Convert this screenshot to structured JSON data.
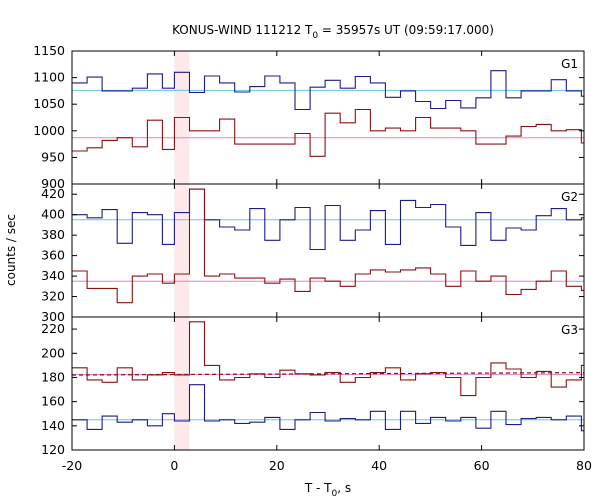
{
  "chart_data": {
    "type": "line",
    "title_main": "KONUS-WIND 111212 T",
    "title_sub": "0",
    "title_rest": " = 35957s UT (09:59:17.000)",
    "xlabel_main": "T - T",
    "xlabel_sub": "0",
    "xlabel_rest": ", s",
    "ylabel": "counts / sec",
    "xlim": [
      -20,
      80
    ],
    "x_ticks": [
      "-20",
      "0",
      "20",
      "40",
      "60",
      "80"
    ],
    "highlight_x": [
      0,
      2.944
    ],
    "bin_edges": [
      -20,
      -17.056,
      -14.112,
      -11.168,
      -8.224,
      -5.28,
      -2.336,
      0,
      2.944,
      5.888,
      8.832,
      11.776,
      14.72,
      17.664,
      20.608,
      23.552,
      26.496,
      29.44,
      32.384,
      35.328,
      38.272,
      41.216,
      44.16,
      47.104,
      50.048,
      52.992,
      55.936,
      58.88,
      61.824,
      64.768,
      67.712,
      70.656,
      73.6,
      76.544,
      79.488,
      80
    ],
    "colors": {
      "high": "#1c1c8c",
      "low": "#8c1010",
      "high_bg": "#5ec8e8",
      "low_bg": "#e080d8",
      "highlight": "#fde8ea"
    },
    "panels": [
      {
        "label": "G1",
        "ylim": [
          900,
          1150
        ],
        "y_ticks": [
          "900",
          "950",
          "1000",
          "1050",
          "1100",
          "1150"
        ],
        "series": [
          {
            "role": "high",
            "background": 1076,
            "values": [
              1090,
              1101,
              1075,
              1075,
              1080,
              1107,
              1080,
              1110,
              1072,
              1103,
              1090,
              1073,
              1083,
              1103,
              1090,
              1040,
              1082,
              1095,
              1080,
              1102,
              1090,
              1063,
              1075,
              1055,
              1042,
              1057,
              1043,
              1062,
              1113,
              1062,
              1075,
              1075,
              1096,
              1075,
              1065,
              1075,
              1078
            ]
          },
          {
            "role": "low",
            "background": 987,
            "values": [
              962,
              968,
              982,
              987,
              970,
              1020,
              965,
              1025,
              1000,
              1000,
              1022,
              975,
              975,
              975,
              975,
              995,
              952,
              1033,
              1015,
              1040,
              1000,
              1005,
              1000,
              1025,
              1005,
              1005,
              1000,
              975,
              975,
              990,
              1008,
              1012,
              1000,
              1002,
              977,
              977,
              970
            ]
          }
        ]
      },
      {
        "label": "G2",
        "ylim": [
          300,
          430
        ],
        "y_ticks": [
          "300",
          "320",
          "340",
          "360",
          "380",
          "400",
          "420"
        ],
        "series": [
          {
            "role": "high",
            "background": 395,
            "values": [
              400,
              397,
              405,
              372,
              402,
              400,
              371,
              402,
              425,
              395,
              388,
              385,
              406,
              375,
              395,
              407,
              366,
              409,
              375,
              385,
              404,
              371,
              414,
              407,
              410,
              388,
              370,
              402,
              375,
              387,
              385,
              399,
              406,
              395,
              397,
              395,
              400
            ]
          },
          {
            "role": "low",
            "background": 335,
            "values": [
              345,
              328,
              328,
              314,
              340,
              342,
              333,
              342,
              425,
              340,
              342,
              338,
              338,
              333,
              337,
              325,
              338,
              335,
              330,
              342,
              346,
              344,
              346,
              348,
              342,
              330,
              345,
              335,
              340,
              322,
              327,
              335,
              345,
              330,
              326,
              332,
              330
            ]
          }
        ]
      },
      {
        "label": "G3",
        "ylim": [
          120,
          230
        ],
        "y_ticks": [
          "120",
          "140",
          "160",
          "180",
          "200",
          "220"
        ],
        "series": [
          {
            "role": "high",
            "background": 145,
            "values": [
              145,
              137,
              148,
              143,
              145,
              140,
              150,
              144,
              174,
              144,
              145,
              142,
              143,
              147,
              137,
              145,
              151,
              144,
              146,
              145,
              152,
              137,
              152,
              142,
              147,
              144,
              147,
              138,
              152,
              141,
              146,
              147,
              145,
              148,
              136,
              148,
              140
            ]
          },
          {
            "role": "low",
            "background": 182.5,
            "trend": [
              182,
              184
            ],
            "values": [
              188,
              178,
              176,
              188,
              178,
              182,
              184,
              182,
              226,
              190,
              178,
              180,
              183,
              180,
              186,
              183,
              182,
              184,
              176,
              180,
              184,
              188,
              178,
              183,
              184,
              180,
              165,
              180,
              192,
              187,
              180,
              185,
              172,
              178,
              190,
              180,
              178
            ]
          }
        ]
      }
    ]
  }
}
